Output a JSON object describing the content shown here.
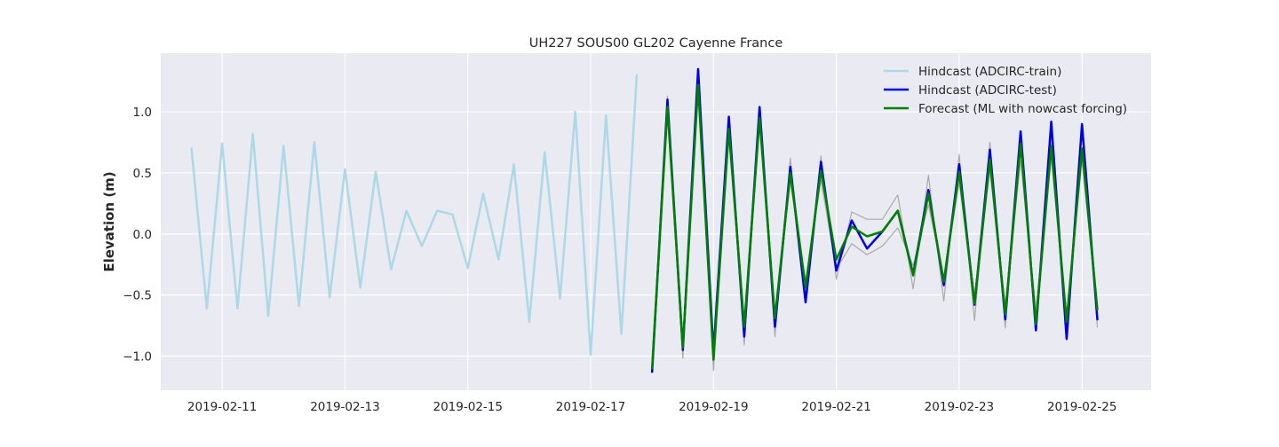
{
  "chart_data": {
    "type": "line",
    "title": "UH227 SOUS00 GL202 Cayenne France",
    "xlabel": "",
    "ylabel": "Elevation (m)",
    "x_type": "date",
    "xlim": [
      "2019-02-10T00:00",
      "2019-02-26T03:00"
    ],
    "ylim": [
      -1.28,
      1.48
    ],
    "x_ticks": [
      "2019-02-11",
      "2019-02-13",
      "2019-02-15",
      "2019-02-17",
      "2019-02-19",
      "2019-02-21",
      "2019-02-23",
      "2019-02-25"
    ],
    "y_ticks": [
      -1.0,
      -0.5,
      0.0,
      0.5,
      1.0
    ],
    "y_tick_labels": [
      "−1.0",
      "−0.5",
      "0.0",
      "0.5",
      "1.0"
    ],
    "grid": true,
    "background": "#eaeaf2",
    "legend_position": "top-right",
    "series": [
      {
        "name": "Hindcast (ADCIRC-train)",
        "color": "#add8e6",
        "width": 2.5,
        "x": [
          "2019-02-10T12:00",
          "2019-02-10T18:00",
          "2019-02-11T00:00",
          "2019-02-11T06:00",
          "2019-02-11T12:00",
          "2019-02-11T18:00",
          "2019-02-12T00:00",
          "2019-02-12T06:00",
          "2019-02-12T12:00",
          "2019-02-12T18:00",
          "2019-02-13T00:00",
          "2019-02-13T06:00",
          "2019-02-13T12:00",
          "2019-02-13T18:00",
          "2019-02-14T00:00",
          "2019-02-14T06:00",
          "2019-02-14T12:00",
          "2019-02-14T18:00",
          "2019-02-15T00:00",
          "2019-02-15T06:00",
          "2019-02-15T12:00",
          "2019-02-15T18:00",
          "2019-02-16T00:00",
          "2019-02-16T06:00",
          "2019-02-16T12:00",
          "2019-02-16T18:00",
          "2019-02-17T00:00",
          "2019-02-17T06:00",
          "2019-02-17T12:00",
          "2019-02-17T18:00"
        ],
        "y": [
          0.7,
          -0.61,
          0.74,
          -0.61,
          0.82,
          -0.67,
          0.72,
          -0.59,
          0.75,
          -0.52,
          0.53,
          -0.44,
          0.51,
          -0.29,
          0.19,
          -0.1,
          0.19,
          0.16,
          -0.28,
          0.33,
          -0.21,
          0.57,
          -0.72,
          0.67,
          -0.53,
          1.0,
          -0.99,
          0.97,
          -0.82,
          1.3
        ]
      },
      {
        "name": "",
        "color": "#aaaaaa",
        "width": 1.2,
        "x": [
          "2019-02-18T00:00",
          "2019-02-18T06:00",
          "2019-02-18T12:00",
          "2019-02-18T18:00",
          "2019-02-19T00:00",
          "2019-02-19T06:00",
          "2019-02-19T12:00",
          "2019-02-19T18:00",
          "2019-02-20T00:00",
          "2019-02-20T06:00",
          "2019-02-20T12:00",
          "2019-02-20T18:00",
          "2019-02-21T00:00",
          "2019-02-21T06:00",
          "2019-02-21T12:00",
          "2019-02-21T18:00",
          "2019-02-22T00:00",
          "2019-02-22T06:00",
          "2019-02-22T12:00",
          "2019-02-22T18:00",
          "2019-02-23T00:00",
          "2019-02-23T06:00",
          "2019-02-23T12:00",
          "2019-02-23T18:00",
          "2019-02-24T00:00",
          "2019-02-24T06:00",
          "2019-02-24T12:00",
          "2019-02-24T18:00",
          "2019-02-25T00:00",
          "2019-02-25T06:00"
        ],
        "y": [
          -1.08,
          1.13,
          -1.02,
          1.3,
          -1.12,
          0.9,
          -0.91,
          1.02,
          -0.84,
          0.62,
          -0.52,
          0.64,
          -0.37,
          0.18,
          0.12,
          0.12,
          0.32,
          -0.45,
          0.48,
          -0.55,
          0.65,
          -0.71,
          0.75,
          -0.77,
          0.79,
          -0.75,
          0.79,
          -0.83,
          0.82,
          -0.76
        ]
      },
      {
        "name": "",
        "color": "#aaaaaa",
        "width": 1.2,
        "x": [
          "2019-02-18T00:00",
          "2019-02-18T06:00",
          "2019-02-18T12:00",
          "2019-02-18T18:00",
          "2019-02-19T00:00",
          "2019-02-19T06:00",
          "2019-02-19T12:00",
          "2019-02-19T18:00",
          "2019-02-20T00:00",
          "2019-02-20T06:00",
          "2019-02-20T12:00",
          "2019-02-20T18:00",
          "2019-02-21T00:00",
          "2019-02-21T06:00",
          "2019-02-21T12:00",
          "2019-02-21T18:00",
          "2019-02-22T00:00",
          "2019-02-22T06:00",
          "2019-02-22T12:00",
          "2019-02-22T18:00",
          "2019-02-23T00:00",
          "2019-02-23T06:00",
          "2019-02-23T12:00",
          "2019-02-23T18:00",
          "2019-02-24T00:00",
          "2019-02-24T06:00",
          "2019-02-24T12:00",
          "2019-02-24T18:00",
          "2019-02-25T00:00",
          "2019-02-25T06:00"
        ],
        "y": [
          -1.12,
          1.02,
          -0.92,
          1.18,
          -1.0,
          0.78,
          -0.73,
          0.9,
          -0.64,
          0.42,
          -0.38,
          0.44,
          -0.29,
          -0.08,
          -0.17,
          -0.1,
          0.05,
          -0.26,
          0.24,
          -0.36,
          0.42,
          -0.5,
          0.52,
          -0.58,
          0.6,
          -0.62,
          0.62,
          -0.66,
          0.6,
          -0.64
        ]
      },
      {
        "name": "Hindcast (ADCIRC-test)",
        "color": "#0000dd",
        "width": 2.5,
        "x": [
          "2019-02-18T00:00",
          "2019-02-18T06:00",
          "2019-02-18T12:00",
          "2019-02-18T18:00",
          "2019-02-19T00:00",
          "2019-02-19T06:00",
          "2019-02-19T12:00",
          "2019-02-19T18:00",
          "2019-02-20T00:00",
          "2019-02-20T06:00",
          "2019-02-20T12:00",
          "2019-02-20T18:00",
          "2019-02-21T00:00",
          "2019-02-21T06:00",
          "2019-02-21T12:00",
          "2019-02-21T18:00",
          "2019-02-22T00:00",
          "2019-02-22T06:00",
          "2019-02-22T12:00",
          "2019-02-22T18:00",
          "2019-02-23T00:00",
          "2019-02-23T06:00",
          "2019-02-23T12:00",
          "2019-02-23T18:00",
          "2019-02-24T00:00",
          "2019-02-24T06:00",
          "2019-02-24T12:00",
          "2019-02-24T18:00",
          "2019-02-25T00:00",
          "2019-02-25T06:00"
        ],
        "y": [
          -1.13,
          1.1,
          -0.95,
          1.35,
          -0.97,
          0.96,
          -0.84,
          1.04,
          -0.76,
          0.55,
          -0.56,
          0.59,
          -0.3,
          0.11,
          -0.12,
          0.02,
          0.19,
          -0.33,
          0.36,
          -0.42,
          0.57,
          -0.58,
          0.69,
          -0.7,
          0.84,
          -0.79,
          0.92,
          -0.86,
          0.9,
          -0.7
        ]
      },
      {
        "name": "Forecast (ML with nowcast forcing)",
        "color": "#008000",
        "width": 2.5,
        "x": [
          "2019-02-18T00:00",
          "2019-02-18T06:00",
          "2019-02-18T12:00",
          "2019-02-18T18:00",
          "2019-02-19T00:00",
          "2019-02-19T06:00",
          "2019-02-19T12:00",
          "2019-02-19T18:00",
          "2019-02-20T00:00",
          "2019-02-20T06:00",
          "2019-02-20T12:00",
          "2019-02-20T18:00",
          "2019-02-21T00:00",
          "2019-02-21T06:00",
          "2019-02-21T12:00",
          "2019-02-21T18:00",
          "2019-02-22T00:00",
          "2019-02-22T06:00",
          "2019-02-22T12:00",
          "2019-02-22T18:00",
          "2019-02-23T00:00",
          "2019-02-23T06:00",
          "2019-02-23T12:00",
          "2019-02-23T18:00",
          "2019-02-24T00:00",
          "2019-02-24T06:00",
          "2019-02-24T12:00",
          "2019-02-24T18:00",
          "2019-02-25T00:00",
          "2019-02-25T06:00"
        ],
        "y": [
          -1.1,
          1.04,
          -0.93,
          1.22,
          -1.03,
          0.86,
          -0.76,
          0.95,
          -0.69,
          0.5,
          -0.44,
          0.52,
          -0.21,
          0.06,
          -0.02,
          0.02,
          0.19,
          -0.34,
          0.33,
          -0.39,
          0.51,
          -0.57,
          0.61,
          -0.66,
          0.74,
          -0.74,
          0.72,
          -0.72,
          0.7,
          -0.62
        ]
      }
    ]
  }
}
